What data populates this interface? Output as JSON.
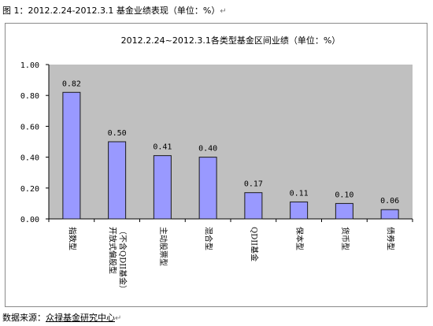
{
  "caption": {
    "prefix": "图 1：2012.2.24-2012.3.1 基金业绩表现（单位：%）",
    "return_mark": "↵"
  },
  "footer": {
    "label": "数据来源：",
    "source": "众禄基金研究中心",
    "return_mark": "↵"
  },
  "colors": {
    "bar_fill": "#9999ff",
    "bar_stroke": "#1a1a1a",
    "plot_bg": "#c0c0c0",
    "frame": "#8a8a8a"
  },
  "chart_data": {
    "type": "bar",
    "title": "2012.2.24~2012.3.1各类型基金区间业绩（单位：%）",
    "xlabel": "",
    "ylabel": "",
    "ylim": [
      0,
      1.0
    ],
    "yticks": [
      "0.00",
      "0.20",
      "0.40",
      "0.60",
      "0.80",
      "1.00"
    ],
    "grid": false,
    "legend": "none",
    "categories": [
      [
        "指数型"
      ],
      [
        "开放式偏股型",
        "（不含QDII基金）"
      ],
      [
        "主动股票型"
      ],
      [
        "混合型"
      ],
      [
        "QDII基金"
      ],
      [
        "保本型"
      ],
      [
        "货币型"
      ],
      [
        "债券型"
      ]
    ],
    "values": [
      0.82,
      0.5,
      0.41,
      0.4,
      0.17,
      0.11,
      0.1,
      0.06
    ],
    "value_labels": [
      "0.82",
      "0.50",
      "0.41",
      "0.40",
      "0.17",
      "0.11",
      "0.10",
      "0.06"
    ]
  }
}
